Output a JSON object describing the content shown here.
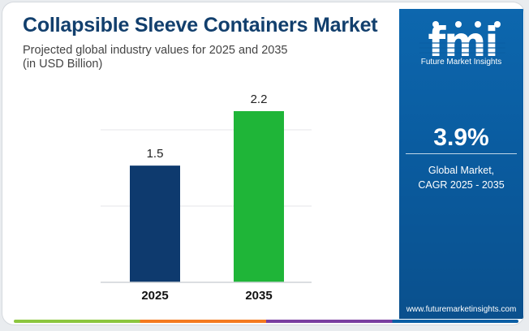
{
  "header": {
    "title": "Collapsible Sleeve Containers Market",
    "subtitle_line1": "Projected global industry values for 2025 and 2035",
    "subtitle_line2": "(in USD Billion)"
  },
  "chart_data": {
    "type": "bar",
    "categories": [
      "2025",
      "2035"
    ],
    "values": [
      1.5,
      2.2
    ],
    "data_labels": [
      "1.5",
      "2.2"
    ],
    "bar_colors": [
      "#0e3a6e",
      "#1fb538"
    ],
    "ylim": [
      0,
      2.2
    ],
    "grid": true,
    "title": "",
    "xlabel": "",
    "ylabel": ""
  },
  "sidebar": {
    "logo_text": "Future Market Insights",
    "cagr_value": "3.9%",
    "cagr_label_line1": "Global Market,",
    "cagr_label_line2": "CAGR 2025 - 2035",
    "website": "www.futuremarketinsights.com"
  },
  "colors": {
    "title": "#123f6d",
    "panel": "#0b5fa5",
    "bottom_bar": [
      "#8cc63f",
      "#f47a20",
      "#7a3fa0",
      "#0b5fa5"
    ]
  },
  "icons": [
    "fmi-logo-icon"
  ]
}
